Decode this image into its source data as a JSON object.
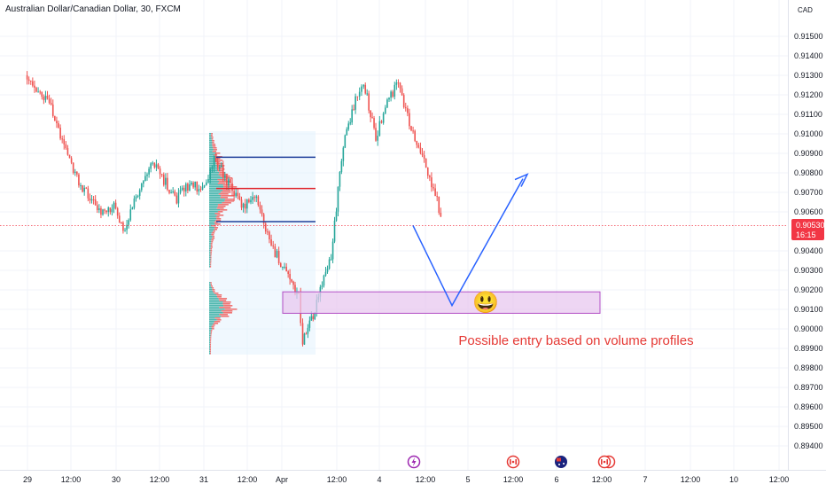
{
  "header": {
    "symbol_title": "Australian Dollar/Canadian Dollar, 30, FXCM"
  },
  "price_axis": {
    "currency": "CAD",
    "current_price": "0.90530",
    "countdown": "16:15"
  },
  "annotation": {
    "text": "Possible entry based on volume profiles",
    "emoji": "😃"
  },
  "colors": {
    "up": "#26a69a",
    "down": "#ef5350",
    "profile_level_blue": "#1e3f9a",
    "profile_level_red": "#e0242b",
    "entry_zone_fill": "#e8c8ef",
    "entry_zone_border": "#b24fc5",
    "projection_line": "#2962ff",
    "annotation_text": "#e53935",
    "price_label_bg": "#f23645",
    "event_icon_purple": "#9c27b0",
    "event_icon_red": "#e53935"
  },
  "event_icons": [
    "lightning-icon",
    "canada-flag-icon",
    "australia-flag-icon",
    "canada-flag-icon"
  ],
  "chart_data": {
    "type": "candlestick",
    "title": "Australian Dollar/Canadian Dollar, 30, FXCM",
    "interval": "30",
    "source": "FXCM",
    "currency": "CAD",
    "ylim": [
      0.8932,
      0.9163
    ],
    "y_ticks": [
      "0.91500",
      "0.91400",
      "0.91300",
      "0.91200",
      "0.91100",
      "0.91000",
      "0.90900",
      "0.90800",
      "0.90700",
      "0.90600",
      "0.90400",
      "0.90300",
      "0.90200",
      "0.90100",
      "0.90000",
      "0.89900",
      "0.89800",
      "0.89700",
      "0.89600",
      "0.89500",
      "0.89400"
    ],
    "x_ticks": [
      "29",
      "12:00",
      "30",
      "12:00",
      "31",
      "12:00",
      "Apr",
      "12:00",
      "4",
      "12:00",
      "5",
      "12:00",
      "6",
      "12:00",
      "7",
      "12:00",
      "10",
      "12:00"
    ],
    "last_price": 0.9053,
    "price_path": [
      {
        "t": "29 00:00",
        "p": 0.913
      },
      {
        "t": "29 06:00",
        "p": 0.9115
      },
      {
        "t": "29 10:00",
        "p": 0.9095
      },
      {
        "t": "29 14:00",
        "p": 0.9075
      },
      {
        "t": "29 20:00",
        "p": 0.906
      },
      {
        "t": "30 00:00",
        "p": 0.9063
      },
      {
        "t": "30 02:00",
        "p": 0.905
      },
      {
        "t": "30 08:00",
        "p": 0.908
      },
      {
        "t": "30 10:00",
        "p": 0.9087
      },
      {
        "t": "30 16:00",
        "p": 0.9066
      },
      {
        "t": "30 20:00",
        "p": 0.9074
      },
      {
        "t": "31 00:00",
        "p": 0.9072
      },
      {
        "t": "31 03:00",
        "p": 0.9088
      },
      {
        "t": "31 08:00",
        "p": 0.9073
      },
      {
        "t": "31 12:00",
        "p": 0.9062
      },
      {
        "t": "31 16:00",
        "p": 0.9068
      },
      {
        "t": "31 20:00",
        "p": 0.9045
      },
      {
        "t": "Apr 01:00",
        "p": 0.9028
      },
      {
        "t": "Apr 04:00",
        "p": 0.9017
      },
      {
        "t": "Apr 05:00",
        "p": 0.8993
      },
      {
        "t": "Apr 08:00",
        "p": 0.901
      },
      {
        "t": "Apr 12:00",
        "p": 0.9038
      },
      {
        "t": "Apr 15:00",
        "p": 0.9095
      },
      {
        "t": "Apr 18:00",
        "p": 0.9118
      },
      {
        "t": "Apr 20:00",
        "p": 0.9127
      },
      {
        "t": "Apr 23:00",
        "p": 0.9098
      },
      {
        "t": "4 02:00",
        "p": 0.9118
      },
      {
        "t": "4 05:00",
        "p": 0.9125
      },
      {
        "t": "4 09:00",
        "p": 0.91
      },
      {
        "t": "4 12:00",
        "p": 0.9085
      },
      {
        "t": "4 15:00",
        "p": 0.907
      },
      {
        "t": "4 17:00",
        "p": 0.9053
      }
    ],
    "volume_profiles": [
      {
        "range": [
          "31 03:00",
          "Apr 20:00"
        ],
        "levels": {
          "upper": 0.9088,
          "poc": 0.9072,
          "lower": 0.9055
        }
      },
      {
        "range": [
          "Apr 00:00",
          "Apr 08:00"
        ],
        "levels": {
          "poc": 0.9011
        }
      }
    ],
    "entry_zone": {
      "y_range": [
        0.9008,
        0.9019
      ],
      "x_range": [
        "Apr 08:00",
        "6 12:00"
      ]
    },
    "projection": [
      {
        "t": "4 17:00",
        "p": 0.9053
      },
      {
        "t": "4 22:00",
        "p": 0.9012
      },
      {
        "t": "5 15:00",
        "p": 0.9077
      }
    ]
  }
}
